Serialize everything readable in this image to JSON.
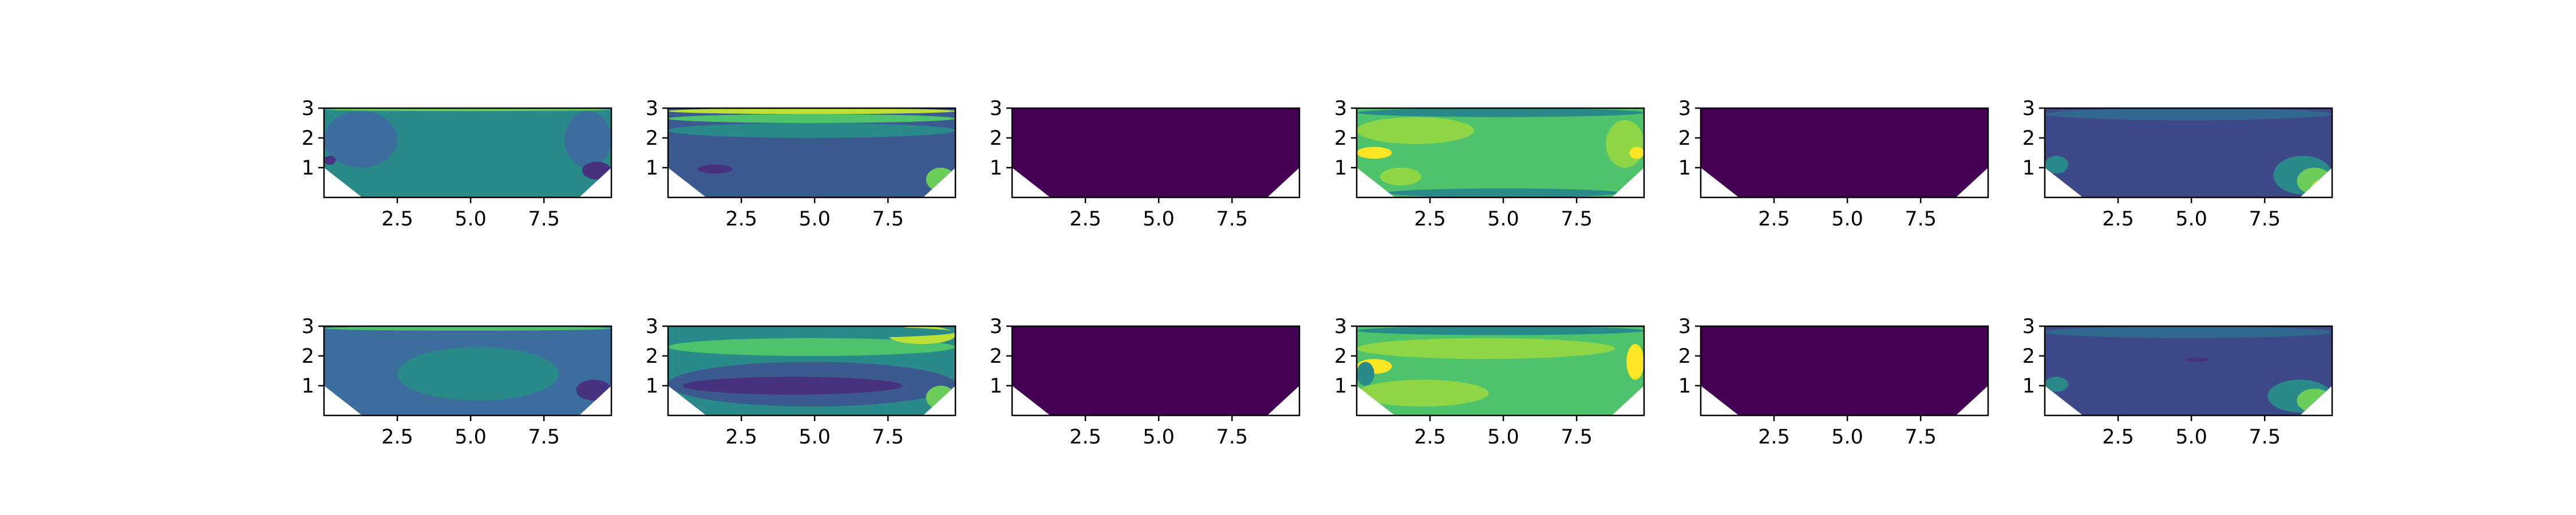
{
  "chart_data": [
    {
      "type": "heatmap",
      "panel_index": 0,
      "row": 0,
      "col": 0,
      "x_ticks": [
        "2.5",
        "5.0",
        "7.5"
      ],
      "y_ticks": [
        "1",
        "2",
        "3"
      ],
      "xlim": [
        0,
        9.8
      ],
      "ylim": [
        0,
        3
      ],
      "dominant_color": "#2a8a8a",
      "regions": [
        {
          "level": "mid",
          "color": "#2a8a8a",
          "x_range": [
            2.0,
            8.5
          ],
          "y_range": [
            0.5,
            2.6
          ]
        },
        {
          "level": "low",
          "color": "#3b6e9e",
          "x_range": [
            0.0,
            2.5
          ],
          "y_range": [
            1.0,
            2.9
          ]
        },
        {
          "level": "low",
          "color": "#3b6e9e",
          "x_range": [
            8.2,
            9.8
          ],
          "y_range": [
            1.0,
            2.9
          ]
        },
        {
          "level": "very-low",
          "color": "#46327e",
          "x_range": [
            0.0,
            0.4
          ],
          "y_range": [
            1.1,
            1.4
          ]
        },
        {
          "level": "very-low",
          "color": "#46327e",
          "x_range": [
            8.8,
            9.8
          ],
          "y_range": [
            0.6,
            1.2
          ]
        },
        {
          "level": "high",
          "color": "#6ccd5a",
          "x_range": [
            0.0,
            9.8
          ],
          "y_range": [
            2.9,
            3.0
          ]
        }
      ]
    },
    {
      "type": "heatmap",
      "panel_index": 1,
      "row": 0,
      "col": 1,
      "x_ticks": [
        "2.5",
        "5.0",
        "7.5"
      ],
      "y_ticks": [
        "1",
        "2",
        "3"
      ],
      "xlim": [
        0,
        9.8
      ],
      "ylim": [
        0,
        3
      ],
      "dominant_color": "#3b5a8f",
      "regions": [
        {
          "level": "low",
          "color": "#3b5a8f",
          "x_range": [
            0.0,
            9.8
          ],
          "y_range": [
            0.0,
            2.0
          ]
        },
        {
          "level": "mid",
          "color": "#2a8a8a",
          "x_range": [
            0.0,
            9.8
          ],
          "y_range": [
            2.0,
            2.5
          ]
        },
        {
          "level": "high",
          "color": "#4ec36b",
          "x_range": [
            0.0,
            9.8
          ],
          "y_range": [
            2.5,
            2.8
          ]
        },
        {
          "level": "max",
          "color": "#bde037",
          "x_range": [
            0.0,
            9.8
          ],
          "y_range": [
            2.8,
            3.0
          ]
        },
        {
          "level": "very-low",
          "color": "#46327e",
          "x_range": [
            1.0,
            2.2
          ],
          "y_range": [
            0.8,
            1.1
          ]
        },
        {
          "level": "high",
          "color": "#6ccd5a",
          "x_range": [
            8.8,
            9.8
          ],
          "y_range": [
            0.2,
            1.0
          ]
        }
      ]
    },
    {
      "type": "heatmap",
      "panel_index": 2,
      "row": 0,
      "col": 2,
      "x_ticks": [
        "2.5",
        "5.0",
        "7.5"
      ],
      "y_ticks": [
        "1",
        "2",
        "3"
      ],
      "xlim": [
        0,
        9.8
      ],
      "ylim": [
        0,
        3
      ],
      "dominant_color": "#440154",
      "regions": []
    },
    {
      "type": "heatmap",
      "panel_index": 3,
      "row": 0,
      "col": 3,
      "x_ticks": [
        "2.5",
        "5.0",
        "7.5"
      ],
      "y_ticks": [
        "1",
        "2",
        "3"
      ],
      "xlim": [
        0,
        9.8
      ],
      "ylim": [
        0,
        3
      ],
      "dominant_color": "#4ec36b",
      "regions": [
        {
          "level": "high",
          "color": "#8ed645",
          "x_range": [
            0.0,
            4.0
          ],
          "y_range": [
            1.8,
            2.7
          ]
        },
        {
          "level": "max",
          "color": "#fde725",
          "x_range": [
            0.0,
            1.2
          ],
          "y_range": [
            1.3,
            1.7
          ]
        },
        {
          "level": "high",
          "color": "#8ed645",
          "x_range": [
            0.8,
            2.2
          ],
          "y_range": [
            0.4,
            1.0
          ]
        },
        {
          "level": "high",
          "color": "#8ed645",
          "x_range": [
            8.5,
            9.8
          ],
          "y_range": [
            1.0,
            2.6
          ]
        },
        {
          "level": "max",
          "color": "#fde725",
          "x_range": [
            9.3,
            9.8
          ],
          "y_range": [
            1.3,
            1.7
          ]
        },
        {
          "level": "mid",
          "color": "#2a8a8a",
          "x_range": [
            0.0,
            9.8
          ],
          "y_range": [
            2.7,
            3.0
          ]
        },
        {
          "level": "mid",
          "color": "#2a8a8a",
          "x_range": [
            1.0,
            9.0
          ],
          "y_range": [
            0.0,
            0.3
          ]
        }
      ]
    },
    {
      "type": "heatmap",
      "panel_index": 4,
      "row": 0,
      "col": 4,
      "x_ticks": [
        "2.5",
        "5.0",
        "7.5"
      ],
      "y_ticks": [
        "1",
        "2",
        "3"
      ],
      "xlim": [
        0,
        9.8
      ],
      "ylim": [
        0,
        3
      ],
      "dominant_color": "#440154",
      "regions": []
    },
    {
      "type": "heatmap",
      "panel_index": 5,
      "row": 0,
      "col": 5,
      "x_ticks": [
        "2.5",
        "5.0",
        "7.5"
      ],
      "y_ticks": [
        "1",
        "2",
        "3"
      ],
      "xlim": [
        0,
        9.8
      ],
      "ylim": [
        0,
        3
      ],
      "dominant_color": "#3e4989",
      "regions": [
        {
          "level": "low",
          "color": "#31688e",
          "x_range": [
            0.0,
            9.8
          ],
          "y_range": [
            2.6,
            3.0
          ]
        },
        {
          "level": "mid",
          "color": "#2a8a8a",
          "x_range": [
            0.0,
            0.8
          ],
          "y_range": [
            0.8,
            1.4
          ]
        },
        {
          "level": "mid",
          "color": "#2a8a8a",
          "x_range": [
            7.8,
            9.8
          ],
          "y_range": [
            0.1,
            1.4
          ]
        },
        {
          "level": "high",
          "color": "#6ccd5a",
          "x_range": [
            8.6,
            9.8
          ],
          "y_range": [
            0.1,
            1.0
          ]
        },
        {
          "level": "max",
          "color": "#bde037",
          "x_range": [
            9.1,
            9.8
          ],
          "y_range": [
            0.1,
            0.6
          ]
        }
      ]
    },
    {
      "type": "heatmap",
      "panel_index": 6,
      "row": 1,
      "col": 0,
      "x_ticks": [
        "2.5",
        "5.0",
        "7.5"
      ],
      "y_ticks": [
        "1",
        "2",
        "3"
      ],
      "xlim": [
        0,
        9.8
      ],
      "ylim": [
        0,
        3
      ],
      "dominant_color": "#3b6e9e",
      "regions": [
        {
          "level": "mid",
          "color": "#2a8a8a",
          "x_range": [
            2.5,
            8.0
          ],
          "y_range": [
            0.5,
            2.3
          ]
        },
        {
          "level": "high",
          "color": "#4ec36b",
          "x_range": [
            0.0,
            9.8
          ],
          "y_range": [
            2.85,
            3.0
          ]
        },
        {
          "level": "very-low",
          "color": "#46327e",
          "x_range": [
            8.6,
            9.8
          ],
          "y_range": [
            0.5,
            1.2
          ]
        }
      ]
    },
    {
      "type": "heatmap",
      "panel_index": 7,
      "row": 1,
      "col": 1,
      "x_ticks": [
        "2.5",
        "5.0",
        "7.5"
      ],
      "y_ticks": [
        "1",
        "2",
        "3"
      ],
      "xlim": [
        0,
        9.8
      ],
      "ylim": [
        0,
        3
      ],
      "dominant_color": "#2a8a8a",
      "regions": [
        {
          "level": "low",
          "color": "#3b5a8f",
          "x_range": [
            0.0,
            9.8
          ],
          "y_range": [
            0.3,
            1.8
          ]
        },
        {
          "level": "very-low",
          "color": "#46327e",
          "x_range": [
            0.5,
            8.0
          ],
          "y_range": [
            0.7,
            1.3
          ]
        },
        {
          "level": "high",
          "color": "#4ec36b",
          "x_range": [
            0.0,
            9.8
          ],
          "y_range": [
            2.0,
            2.6
          ]
        },
        {
          "level": "max",
          "color": "#bde037",
          "x_range": [
            7.5,
            9.8
          ],
          "y_range": [
            2.4,
            3.0
          ]
        },
        {
          "level": "mid",
          "color": "#2a8a8a",
          "x_range": [
            0.0,
            9.8
          ],
          "y_range": [
            2.6,
            3.0
          ]
        },
        {
          "level": "high",
          "color": "#6ccd5a",
          "x_range": [
            8.8,
            9.8
          ],
          "y_range": [
            0.2,
            1.0
          ]
        }
      ]
    },
    {
      "type": "heatmap",
      "panel_index": 8,
      "row": 1,
      "col": 2,
      "x_ticks": [
        "2.5",
        "5.0",
        "7.5"
      ],
      "y_ticks": [
        "1",
        "2",
        "3"
      ],
      "xlim": [
        0,
        9.8
      ],
      "ylim": [
        0,
        3
      ],
      "dominant_color": "#440154",
      "regions": []
    },
    {
      "type": "heatmap",
      "panel_index": 9,
      "row": 1,
      "col": 3,
      "x_ticks": [
        "2.5",
        "5.0",
        "7.5"
      ],
      "y_ticks": [
        "1",
        "2",
        "3"
      ],
      "xlim": [
        0,
        9.8
      ],
      "ylim": [
        0,
        3
      ],
      "dominant_color": "#4ec36b",
      "regions": [
        {
          "level": "high",
          "color": "#8ed645",
          "x_range": [
            0.0,
            8.8
          ],
          "y_range": [
            1.9,
            2.6
          ]
        },
        {
          "level": "high",
          "color": "#8ed645",
          "x_range": [
            0.0,
            4.5
          ],
          "y_range": [
            0.3,
            1.2
          ]
        },
        {
          "level": "max",
          "color": "#fde725",
          "x_range": [
            0.0,
            1.2
          ],
          "y_range": [
            1.4,
            1.9
          ]
        },
        {
          "level": "max",
          "color": "#fde725",
          "x_range": [
            9.2,
            9.8
          ],
          "y_range": [
            1.2,
            2.4
          ]
        },
        {
          "level": "mid",
          "color": "#2a8a8a",
          "x_range": [
            0.0,
            9.8
          ],
          "y_range": [
            2.7,
            3.0
          ]
        },
        {
          "level": "mid",
          "color": "#2a8a8a",
          "x_range": [
            0.0,
            0.6
          ],
          "y_range": [
            1.0,
            1.8
          ]
        }
      ]
    },
    {
      "type": "heatmap",
      "panel_index": 10,
      "row": 1,
      "col": 4,
      "x_ticks": [
        "2.5",
        "5.0",
        "7.5"
      ],
      "y_ticks": [
        "1",
        "2",
        "3"
      ],
      "xlim": [
        0,
        9.8
      ],
      "ylim": [
        0,
        3
      ],
      "dominant_color": "#440154",
      "regions": []
    },
    {
      "type": "heatmap",
      "panel_index": 11,
      "row": 1,
      "col": 5,
      "x_ticks": [
        "2.5",
        "5.0",
        "7.5"
      ],
      "y_ticks": [
        "1",
        "2",
        "3"
      ],
      "xlim": [
        0,
        9.8
      ],
      "ylim": [
        0,
        3
      ],
      "dominant_color": "#3e4989",
      "regions": [
        {
          "level": "low",
          "color": "#31688e",
          "x_range": [
            0.0,
            9.8
          ],
          "y_range": [
            2.6,
            3.0
          ]
        },
        {
          "level": "very-low",
          "color": "#46327e",
          "x_range": [
            4.8,
            5.6
          ],
          "y_range": [
            1.8,
            1.95
          ]
        },
        {
          "level": "mid",
          "color": "#2a8a8a",
          "x_range": [
            0.0,
            0.8
          ],
          "y_range": [
            0.8,
            1.3
          ]
        },
        {
          "level": "mid",
          "color": "#2a8a8a",
          "x_range": [
            7.6,
            9.8
          ],
          "y_range": [
            0.1,
            1.2
          ]
        },
        {
          "level": "high",
          "color": "#6ccd5a",
          "x_range": [
            8.6,
            9.8
          ],
          "y_range": [
            0.1,
            0.9
          ]
        },
        {
          "level": "max",
          "color": "#bde037",
          "x_range": [
            9.1,
            9.8
          ],
          "y_range": [
            0.1,
            0.5
          ]
        }
      ]
    }
  ]
}
